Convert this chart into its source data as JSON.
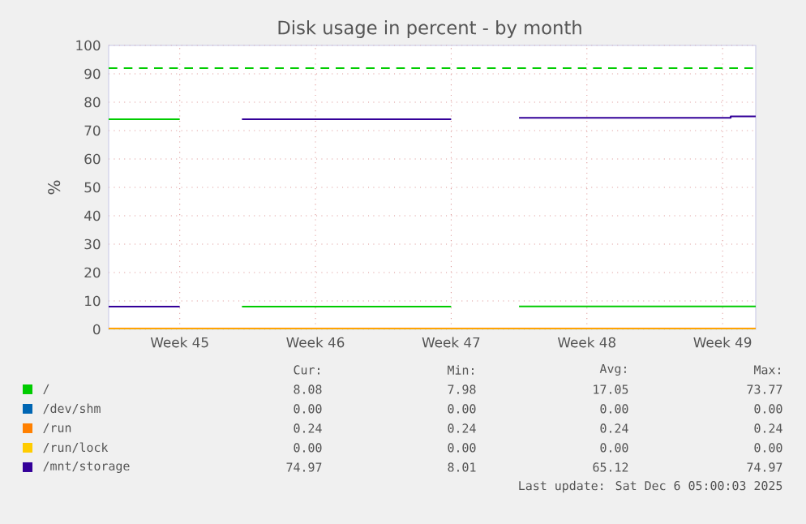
{
  "chart_data": {
    "type": "line",
    "title": "Disk usage in percent - by month",
    "ylabel": "%",
    "xlim": [
      "2025-11-02T20:00",
      "2025-12-06T05:00"
    ],
    "xticks": [
      {
        "value": "2025-11-06T12:00",
        "label": "Week 45"
      },
      {
        "value": "2025-11-13T12:00",
        "label": "Week 46"
      },
      {
        "value": "2025-11-20T12:00",
        "label": "Week 47"
      },
      {
        "value": "2025-11-27T12:00",
        "label": "Week 48"
      },
      {
        "value": "2025-12-04T12:00",
        "label": "Week 49"
      }
    ],
    "ylim": [
      0,
      100
    ],
    "yticks": [
      0,
      10,
      20,
      30,
      40,
      50,
      60,
      70,
      80,
      90,
      100
    ],
    "grid": true,
    "legend": "bottom",
    "series": [
      {
        "name": "/dev/shm",
        "color": "#0066b3",
        "values": [
          null,
          null
        ]
      },
      {
        "name": "/run",
        "color": "#ff8000",
        "x": [
          "2025-11-02T20:00",
          "2025-12-06T05:00"
        ],
        "values": [
          0.24,
          0.24
        ]
      },
      {
        "name": "/run/lock",
        "color": "#ffcc00",
        "x": [
          "2025-11-02T20:00",
          "2025-12-06T05:00"
        ],
        "values": [
          0,
          0
        ]
      },
      {
        "name": "/",
        "color": "#00cc00",
        "x": [
          "2025-11-02T20:00",
          "2025-11-06T12:00",
          "2025-11-07T22:00",
          "2025-11-09T17:00",
          "2025-11-20T12:00",
          "2025-11-22T06:00",
          "2025-11-24T00:00",
          "2025-12-06T05:00"
        ],
        "values": [
          74,
          74,
          null,
          8,
          8,
          null,
          8.08,
          8.08
        ]
      },
      {
        "name": "/mnt/storage",
        "color": "#330099",
        "x": [
          "2025-11-02T20:00",
          "2025-11-06T12:00",
          "2025-11-07T22:00",
          "2025-11-09T17:00",
          "2025-11-20T12:00",
          "2025-11-22T06:00",
          "2025-11-24T00:00",
          "2025-12-04T22:00",
          "2025-12-04T22:00",
          "2025-12-06T05:00"
        ],
        "values": [
          8,
          8,
          null,
          74,
          74,
          null,
          74.5,
          74.5,
          75,
          75
        ]
      }
    ],
    "ref_lines": [
      {
        "axis": "y",
        "value": 92,
        "color": "#00cc00",
        "line_style": "dashed"
      }
    ],
    "annotations": [
      "Cur:",
      "Min:",
      "Avg:",
      "Max:",
      "8.08",
      "7.98",
      "17.05",
      "73.77",
      "0.00",
      "0.00",
      "0.00",
      "0.00",
      "0.24",
      "0.24",
      "0.24",
      "0.24",
      "0.00",
      "0.00",
      "0.00",
      "0.00",
      "74.97",
      "8.01",
      "65.12",
      "74.97",
      "Last update: Sat Dec  6 05:00:03 2025"
    ]
  }
}
